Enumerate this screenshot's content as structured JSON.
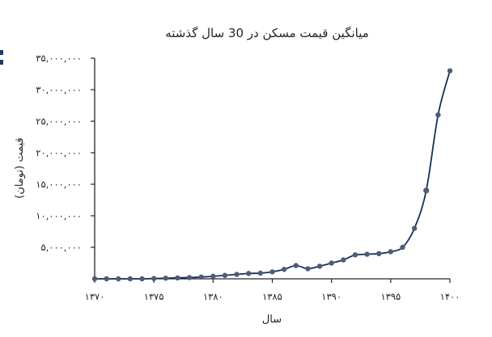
{
  "chart_data": {
    "type": "line",
    "title": "میانگین قیمت مسکن در 30 سال گذشته",
    "xlabel": "سال",
    "ylabel": "قیمت (تومان)",
    "x": [
      1370,
      1371,
      1372,
      1373,
      1374,
      1375,
      1376,
      1377,
      1378,
      1379,
      1380,
      1381,
      1382,
      1383,
      1384,
      1385,
      1386,
      1387,
      1388,
      1389,
      1390,
      1391,
      1392,
      1393,
      1394,
      1395,
      1396,
      1397,
      1398,
      1399,
      1400
    ],
    "values": [
      0,
      0,
      0,
      0,
      0,
      50000,
      100000,
      150000,
      200000,
      280000,
      400000,
      550000,
      700000,
      850000,
      900000,
      1100000,
      1500000,
      2100000,
      1600000,
      2000000,
      2500000,
      3000000,
      3800000,
      3900000,
      4000000,
      4300000,
      5000000,
      8000000,
      14000000,
      26000000,
      33000000
    ],
    "xlim": [
      1370,
      1400
    ],
    "ylim": [
      0,
      35000000
    ],
    "x_ticks": [
      1370,
      1375,
      1380,
      1385,
      1390,
      1395,
      1400
    ],
    "x_tick_labels": [
      "۱۳۷۰",
      "۱۳۷۵",
      "۱۳۸۰",
      "۱۳۸۵",
      "۱۳۹۰",
      "۱۳۹۵",
      "۱۴۰۰"
    ],
    "y_ticks": [
      5000000,
      10000000,
      15000000,
      20000000,
      25000000,
      30000000,
      35000000
    ],
    "y_tick_labels": [
      "۵,۰۰۰,۰۰۰",
      "۱۰,۰۰۰,۰۰۰",
      "۱۵,۰۰۰,۰۰۰",
      "۲۰,۰۰۰,۰۰۰",
      "۲۵,۰۰۰,۰۰۰",
      "۳۰,۰۰۰,۰۰۰",
      "۳۵,۰۰۰,۰۰۰"
    ],
    "grid": false,
    "legend": "none",
    "colors": {
      "line": "#16305a",
      "marker": "#4f5c75",
      "highlight_marker": "#0f2347",
      "axis": "#222428"
    }
  }
}
